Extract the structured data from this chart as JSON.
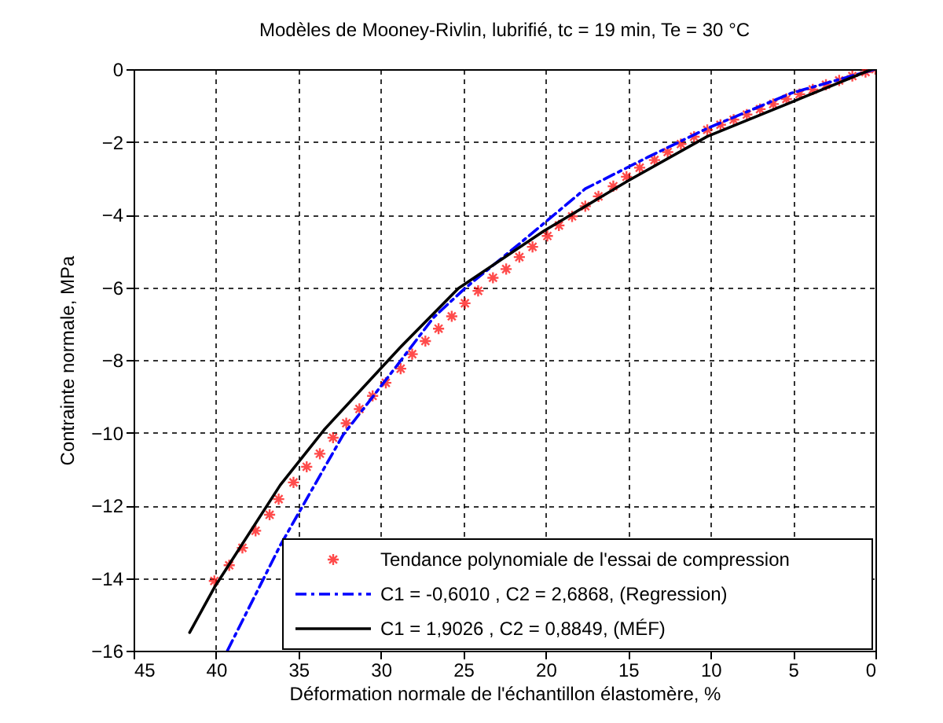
{
  "chart_data": {
    "type": "line",
    "title": "Modèles de Mooney-Rivlin, lubrifié, tc = 19 min, Te = 30 °C",
    "xlabel": "Déformation normale de l'échantillon élastomère, %",
    "ylabel": "Contrainte normale, MPa",
    "xlim": [
      45,
      0
    ],
    "xticks": [
      45,
      40,
      35,
      30,
      25,
      20,
      15,
      10,
      5,
      0
    ],
    "ylim": [
      -16,
      0
    ],
    "yticks": [
      -16,
      -14,
      -12,
      -10,
      -8,
      -6,
      -4,
      -2,
      0
    ],
    "grid": true,
    "legend": "bottom right",
    "series": [
      {
        "name": "Tendance polynomiale de l'essai de compression",
        "type": "scatter",
        "marker": "cross",
        "color": "#ff0000",
        "x": [
          40.1,
          39.2,
          38.4,
          37.6,
          36.75,
          36.2,
          35.3,
          34.5,
          33.7,
          32.9,
          32.1,
          31.3,
          30.5,
          29.7,
          28.8,
          28.1,
          27.3,
          26.5,
          25.7,
          24.9,
          24.1,
          23.2,
          22.4,
          21.6,
          20.8,
          19.9,
          19.2,
          18.4,
          17.6,
          16.8,
          15.9,
          15.1,
          14.3,
          13.4,
          12.6,
          11.8,
          11.0,
          10.2,
          9.4,
          8.6,
          7.8,
          7.0,
          6.2,
          5.4,
          4.6,
          3.8,
          3.0,
          2.2,
          1.4,
          0.6,
          0
        ],
        "values": [
          -14.08,
          -13.65,
          -13.17,
          -12.7,
          -12.26,
          -11.83,
          -11.37,
          -10.94,
          -10.58,
          -10.14,
          -9.74,
          -9.35,
          -8.99,
          -8.63,
          -8.24,
          -7.84,
          -7.48,
          -7.14,
          -6.8,
          -6.44,
          -6.1,
          -5.74,
          -5.5,
          -5.17,
          -4.89,
          -4.59,
          -4.3,
          -4.05,
          -3.77,
          -3.5,
          -3.22,
          -2.96,
          -2.71,
          -2.5,
          -2.28,
          -2.06,
          -1.86,
          -1.67,
          -1.53,
          -1.39,
          -1.25,
          -1.1,
          -0.96,
          -0.82,
          -0.69,
          -0.56,
          -0.43,
          -0.31,
          -0.19,
          -0.08,
          0
        ]
      },
      {
        "name": "C1 = -0,6010 , C2 = 2,6868, (Regression)",
        "line_style": "dashed",
        "marker": "none",
        "color": "#0000ff",
        "x": [
          39.3,
          36.1,
          32.3,
          29.1,
          26.8,
          24.9,
          21.4,
          17.6,
          13.8,
          10.2,
          5.1,
          0
        ],
        "values": [
          -15.99,
          -13.1,
          -10.07,
          -8.2,
          -6.83,
          -6.03,
          -4.73,
          -3.29,
          -2.42,
          -1.63,
          -0.66,
          0
        ]
      },
      {
        "name": "C1 =  1,9026 , C2 = 0,8849, (MÉF)",
        "line_style": "solid",
        "marker": "none",
        "color": "#000000",
        "x": [
          41.6,
          40.1,
          36.1,
          33.4,
          28.9,
          25.3,
          20.1,
          15.0,
          10.2,
          5.1,
          0.2,
          0
        ],
        "values": [
          -15.5,
          -14.26,
          -11.44,
          -9.9,
          -7.69,
          -6.03,
          -4.45,
          -3.07,
          -1.85,
          -0.91,
          0,
          0
        ]
      }
    ]
  }
}
